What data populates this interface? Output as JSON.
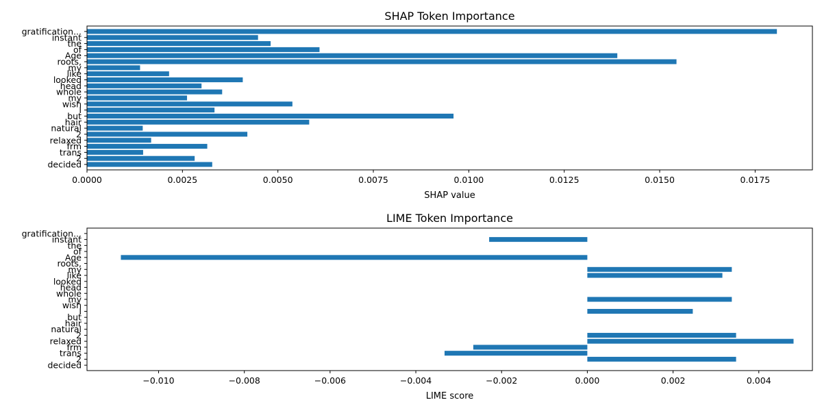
{
  "chart_data": [
    {
      "type": "bar",
      "orientation": "horizontal",
      "title": "SHAP Token Importance",
      "xlabel": "SHAP value",
      "ylabel": "",
      "xlim": [
        0,
        0.019
      ],
      "xticks": [
        0.0,
        0.0025,
        0.005,
        0.0075,
        0.01,
        0.0125,
        0.015,
        0.0175
      ],
      "xtick_labels": [
        "0.0000",
        "0.0025",
        "0.0050",
        "0.0075",
        "0.0100",
        "0.0125",
        "0.0150",
        "0.0175"
      ],
      "categories": [
        "gratification...",
        "instant",
        "the",
        "of",
        "Age",
        "roots,",
        "my",
        "like",
        "looked",
        "head",
        "whole",
        "my",
        "wish",
        "I",
        "but",
        "hair",
        "natural",
        "2",
        "relaxed",
        "frm",
        "trans",
        "2",
        "decided"
      ],
      "values": [
        0.01807,
        0.00448,
        0.00481,
        0.00609,
        0.01389,
        0.01544,
        0.00139,
        0.00215,
        0.00408,
        0.003,
        0.00354,
        0.00262,
        0.00538,
        0.00334,
        0.0096,
        0.00582,
        0.00146,
        0.0042,
        0.00168,
        0.00315,
        0.00147,
        0.00282,
        0.00328
      ],
      "color": "#1f77b4"
    },
    {
      "type": "bar",
      "orientation": "horizontal",
      "title": "LIME Token Importance",
      "xlabel": "LIME score",
      "ylabel": "",
      "xlim": [
        -0.01167,
        0.00525
      ],
      "xticks": [
        -0.01,
        -0.008,
        -0.006,
        -0.004,
        -0.002,
        0.0,
        0.002,
        0.004
      ],
      "xtick_labels": [
        "−0.010",
        "−0.008",
        "−0.006",
        "−0.004",
        "−0.002",
        "0.000",
        "0.002",
        "0.004"
      ],
      "categories": [
        "gratification...",
        "instant",
        "the",
        "of",
        "Age",
        "roots,",
        "my",
        "like",
        "looked",
        "head",
        "whole",
        "my",
        "wish",
        "I",
        "but",
        "hair",
        "natural",
        "2",
        "relaxed",
        "frm",
        "trans",
        "2",
        "decided"
      ],
      "values": [
        0,
        -0.00229,
        0,
        0,
        -0.01088,
        0,
        0.00337,
        0.00315,
        0,
        0,
        0,
        0.00337,
        0,
        0.00246,
        0,
        0,
        0,
        0.00347,
        0.00481,
        -0.00266,
        -0.00333,
        0.00347,
        0
      ],
      "color": "#1f77b4"
    }
  ]
}
